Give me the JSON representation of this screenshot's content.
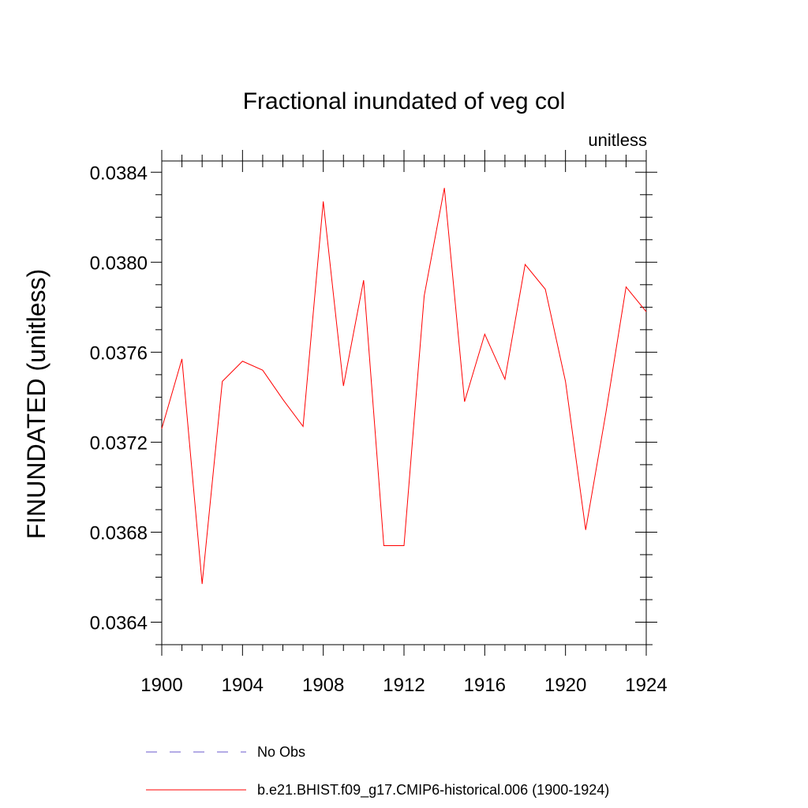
{
  "chart_data": {
    "type": "line",
    "title": "Fractional inundated of veg col",
    "units_label": "unitless",
    "ylabel": "FINUNDATED  (unitless)",
    "xlabel": "",
    "xlim": [
      1900,
      1924
    ],
    "ylim": [
      0.0363,
      0.03845
    ],
    "x_ticks": [
      1900,
      1904,
      1908,
      1912,
      1916,
      1920,
      1924
    ],
    "x_tick_labels": [
      "1900",
      "1904",
      "1908",
      "1912",
      "1916",
      "1920",
      "1924"
    ],
    "y_ticks": [
      0.0364,
      0.0368,
      0.0372,
      0.0376,
      0.038,
      0.0384
    ],
    "y_tick_labels": [
      "0.0364",
      "0.0368",
      "0.0372",
      "0.0376",
      "0.0380",
      "0.0384"
    ],
    "grid": false,
    "legend_placement": "bottom",
    "series": [
      {
        "name": "b.e21.BHIST.f09_g17.CMIP6-historical.006 (1900-1924)",
        "color": "#ff0000",
        "style": "solid",
        "x": [
          1900,
          1901,
          1902,
          1903,
          1904,
          1905,
          1906,
          1907,
          1908,
          1909,
          1910,
          1911,
          1912,
          1913,
          1914,
          1915,
          1916,
          1917,
          1918,
          1919,
          1920,
          1921,
          1922,
          1923,
          1924
        ],
        "values": [
          0.03726,
          0.03757,
          0.03657,
          0.03747,
          0.03756,
          0.03752,
          0.03739,
          0.03727,
          0.03827,
          0.03745,
          0.03792,
          0.03674,
          0.03674,
          0.03785,
          0.03833,
          0.03738,
          0.03768,
          0.03748,
          0.03799,
          0.03788,
          0.03747,
          0.03681,
          0.03733,
          0.03789,
          0.03778
        ]
      }
    ],
    "legend": [
      {
        "label": "No Obs",
        "color": "#6a5acd",
        "style": "dashed"
      },
      {
        "label": "b.e21.BHIST.f09_g17.CMIP6-historical.006 (1900-1924)",
        "color": "#ff0000",
        "style": "solid"
      }
    ]
  }
}
